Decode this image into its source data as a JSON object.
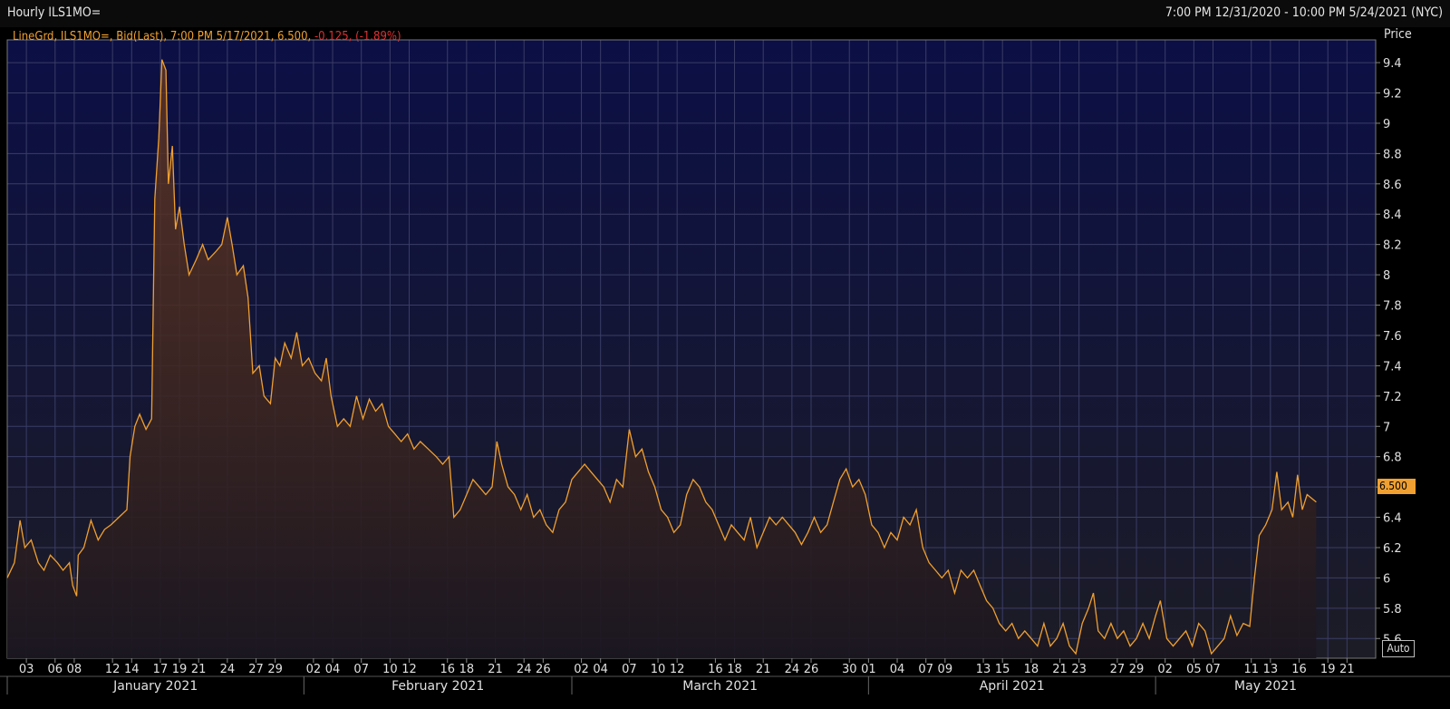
{
  "window": {
    "title": "Hourly ILS1MO=",
    "range": "7:00 PM 12/31/2020 - 10:00 PM 5/24/2021 (NYC)"
  },
  "legend": {
    "main": "LineGrd, ILS1MO=, Bid(Last), 7:00 PM 5/17/2021, 6.500,",
    "change": "-0.125, (-1.89%)"
  },
  "axis": {
    "price_label": "Price",
    "last_value_tag": "6.500",
    "auto_button": "Auto"
  },
  "colors": {
    "background": "#0a0d3a",
    "line": "#f0a030",
    "grid": "#3a3d66",
    "negative": "#e03030"
  },
  "chart_data": {
    "type": "area",
    "title": "Hourly ILS1MO=",
    "ylabel": "Price",
    "ylim": [
      5.47,
      9.55
    ],
    "y_ticks": [
      5.6,
      5.8,
      6,
      6.2,
      6.4,
      6.6,
      6.8,
      7,
      7.2,
      7.4,
      7.6,
      7.8,
      8,
      8.2,
      8.4,
      8.6,
      8.8,
      9,
      9.2,
      9.4
    ],
    "x_tick_labels": [
      "03",
      "06",
      "08",
      "12",
      "14",
      "17",
      "19",
      "21",
      "24",
      "27",
      "29",
      "02",
      "04",
      "07",
      "10",
      "12",
      "16",
      "18",
      "21",
      "24",
      "26",
      "02",
      "04",
      "07",
      "10",
      "12",
      "16",
      "18",
      "21",
      "24",
      "26",
      "30",
      "01",
      "04",
      "07",
      "09",
      "13",
      "15",
      "18",
      "21",
      "23",
      "27",
      "29",
      "02",
      "05",
      "07",
      "11",
      "13",
      "16",
      "19",
      "21"
    ],
    "x_tick_dates": [
      "2021-01-03",
      "2021-01-06",
      "2021-01-08",
      "2021-01-12",
      "2021-01-14",
      "2021-01-17",
      "2021-01-19",
      "2021-01-21",
      "2021-01-24",
      "2021-01-27",
      "2021-01-29",
      "2021-02-02",
      "2021-02-04",
      "2021-02-07",
      "2021-02-10",
      "2021-02-12",
      "2021-02-16",
      "2021-02-18",
      "2021-02-21",
      "2021-02-24",
      "2021-02-26",
      "2021-03-02",
      "2021-03-04",
      "2021-03-07",
      "2021-03-10",
      "2021-03-12",
      "2021-03-16",
      "2021-03-18",
      "2021-03-21",
      "2021-03-24",
      "2021-03-26",
      "2021-03-30",
      "2021-04-01",
      "2021-04-04",
      "2021-04-07",
      "2021-04-09",
      "2021-04-13",
      "2021-04-15",
      "2021-04-18",
      "2021-04-21",
      "2021-04-23",
      "2021-04-27",
      "2021-04-29",
      "2021-05-02",
      "2021-05-05",
      "2021-05-07",
      "2021-05-11",
      "2021-05-13",
      "2021-05-16",
      "2021-05-19",
      "2021-05-21"
    ],
    "months": [
      {
        "label": "January 2021",
        "start": "2021-01-01",
        "end": "2021-02-01"
      },
      {
        "label": "February 2021",
        "start": "2021-02-01",
        "end": "2021-03-01"
      },
      {
        "label": "March 2021",
        "start": "2021-03-01",
        "end": "2021-04-01"
      },
      {
        "label": "April 2021",
        "start": "2021-04-01",
        "end": "2021-05-01"
      },
      {
        "label": "May 2021",
        "start": "2021-05-01",
        "end": "2021-05-24"
      }
    ],
    "series": [
      {
        "name": "ILS1MO= Bid(Last)",
        "points": [
          [
            "2021-01-01 00:00",
            6.0
          ],
          [
            "2021-01-01 18:00",
            6.1
          ],
          [
            "2021-01-02 08:00",
            6.38
          ],
          [
            "2021-01-02 20:00",
            6.2
          ],
          [
            "2021-01-03 12:00",
            6.25
          ],
          [
            "2021-01-04 06:00",
            6.1
          ],
          [
            "2021-01-04 20:00",
            6.05
          ],
          [
            "2021-01-05 12:00",
            6.15
          ],
          [
            "2021-01-06 06:00",
            6.1
          ],
          [
            "2021-01-06 20:00",
            6.05
          ],
          [
            "2021-01-07 12:00",
            6.1
          ],
          [
            "2021-01-07 20:00",
            5.95
          ],
          [
            "2021-01-08 06:00",
            5.88
          ],
          [
            "2021-01-08 10:00",
            6.15
          ],
          [
            "2021-01-09 00:00",
            6.2
          ],
          [
            "2021-01-09 18:00",
            6.38
          ],
          [
            "2021-01-10 12:00",
            6.25
          ],
          [
            "2021-01-11 04:00",
            6.32
          ],
          [
            "2021-01-11 20:00",
            6.35
          ],
          [
            "2021-01-12 16:00",
            6.4
          ],
          [
            "2021-01-13 12:00",
            6.45
          ],
          [
            "2021-01-13 20:00",
            6.8
          ],
          [
            "2021-01-14 08:00",
            7.0
          ],
          [
            "2021-01-14 20:00",
            7.08
          ],
          [
            "2021-01-15 12:00",
            6.98
          ],
          [
            "2021-01-16 02:00",
            7.05
          ],
          [
            "2021-01-16 10:00",
            8.5
          ],
          [
            "2021-01-16 20:00",
            8.9
          ],
          [
            "2021-01-17 04:00",
            9.42
          ],
          [
            "2021-01-17 14:00",
            9.35
          ],
          [
            "2021-01-17 20:00",
            8.6
          ],
          [
            "2021-01-18 06:00",
            8.85
          ],
          [
            "2021-01-18 14:00",
            8.3
          ],
          [
            "2021-01-19 00:00",
            8.45
          ],
          [
            "2021-01-19 12:00",
            8.2
          ],
          [
            "2021-01-20 00:00",
            8.0
          ],
          [
            "2021-01-20 18:00",
            8.1
          ],
          [
            "2021-01-21 10:00",
            8.2
          ],
          [
            "2021-01-22 00:00",
            8.1
          ],
          [
            "2021-01-22 18:00",
            8.15
          ],
          [
            "2021-01-23 10:00",
            8.2
          ],
          [
            "2021-01-24 00:00",
            8.38
          ],
          [
            "2021-01-24 12:00",
            8.2
          ],
          [
            "2021-01-25 00:00",
            8.0
          ],
          [
            "2021-01-25 16:00",
            8.06
          ],
          [
            "2021-01-26 04:00",
            7.85
          ],
          [
            "2021-01-26 16:00",
            7.35
          ],
          [
            "2021-01-27 08:00",
            7.4
          ],
          [
            "2021-01-27 20:00",
            7.2
          ],
          [
            "2021-01-28 12:00",
            7.15
          ],
          [
            "2021-01-29 00:00",
            7.45
          ],
          [
            "2021-01-29 12:00",
            7.4
          ],
          [
            "2021-01-30 00:00",
            7.55
          ],
          [
            "2021-01-30 16:00",
            7.45
          ],
          [
            "2021-01-31 06:00",
            7.62
          ],
          [
            "2021-01-31 20:00",
            7.4
          ],
          [
            "2021-02-01 12:00",
            7.45
          ],
          [
            "2021-02-02 04:00",
            7.35
          ],
          [
            "2021-02-02 20:00",
            7.3
          ],
          [
            "2021-02-03 08:00",
            7.45
          ],
          [
            "2021-02-03 20:00",
            7.2
          ],
          [
            "2021-02-04 12:00",
            7.0
          ],
          [
            "2021-02-05 04:00",
            7.05
          ],
          [
            "2021-02-05 20:00",
            7.0
          ],
          [
            "2021-02-06 12:00",
            7.2
          ],
          [
            "2021-02-07 04:00",
            7.05
          ],
          [
            "2021-02-07 20:00",
            7.18
          ],
          [
            "2021-02-08 12:00",
            7.1
          ],
          [
            "2021-02-09 04:00",
            7.15
          ],
          [
            "2021-02-09 20:00",
            7.0
          ],
          [
            "2021-02-10 12:00",
            6.95
          ],
          [
            "2021-02-11 04:00",
            6.9
          ],
          [
            "2021-02-11 20:00",
            6.95
          ],
          [
            "2021-02-12 12:00",
            6.85
          ],
          [
            "2021-02-13 04:00",
            6.9
          ],
          [
            "2021-02-14 00:00",
            6.85
          ],
          [
            "2021-02-14 20:00",
            6.8
          ],
          [
            "2021-02-15 12:00",
            6.75
          ],
          [
            "2021-02-16 04:00",
            6.8
          ],
          [
            "2021-02-16 16:00",
            6.4
          ],
          [
            "2021-02-17 08:00",
            6.45
          ],
          [
            "2021-02-18 00:00",
            6.55
          ],
          [
            "2021-02-18 16:00",
            6.65
          ],
          [
            "2021-02-19 08:00",
            6.6
          ],
          [
            "2021-02-20 00:00",
            6.55
          ],
          [
            "2021-02-20 16:00",
            6.6
          ],
          [
            "2021-02-21 04:00",
            6.9
          ],
          [
            "2021-02-21 16:00",
            6.75
          ],
          [
            "2021-02-22 08:00",
            6.6
          ],
          [
            "2021-02-23 00:00",
            6.55
          ],
          [
            "2021-02-23 16:00",
            6.45
          ],
          [
            "2021-02-24 08:00",
            6.55
          ],
          [
            "2021-02-25 00:00",
            6.4
          ],
          [
            "2021-02-25 16:00",
            6.45
          ],
          [
            "2021-02-26 08:00",
            6.35
          ],
          [
            "2021-02-27 00:00",
            6.3
          ],
          [
            "2021-02-27 16:00",
            6.45
          ],
          [
            "2021-02-28 08:00",
            6.5
          ],
          [
            "2021-03-01 00:00",
            6.65
          ],
          [
            "2021-03-01 16:00",
            6.7
          ],
          [
            "2021-03-02 08:00",
            6.75
          ],
          [
            "2021-03-03 00:00",
            6.7
          ],
          [
            "2021-03-03 16:00",
            6.65
          ],
          [
            "2021-03-04 08:00",
            6.6
          ],
          [
            "2021-03-05 00:00",
            6.5
          ],
          [
            "2021-03-05 16:00",
            6.65
          ],
          [
            "2021-03-06 08:00",
            6.6
          ],
          [
            "2021-03-07 00:00",
            6.98
          ],
          [
            "2021-03-07 16:00",
            6.8
          ],
          [
            "2021-03-08 08:00",
            6.85
          ],
          [
            "2021-03-09 00:00",
            6.7
          ],
          [
            "2021-03-09 16:00",
            6.6
          ],
          [
            "2021-03-10 08:00",
            6.45
          ],
          [
            "2021-03-11 00:00",
            6.4
          ],
          [
            "2021-03-11 16:00",
            6.3
          ],
          [
            "2021-03-12 08:00",
            6.35
          ],
          [
            "2021-03-13 00:00",
            6.55
          ],
          [
            "2021-03-13 16:00",
            6.65
          ],
          [
            "2021-03-14 08:00",
            6.6
          ],
          [
            "2021-03-15 00:00",
            6.5
          ],
          [
            "2021-03-15 16:00",
            6.45
          ],
          [
            "2021-03-16 08:00",
            6.35
          ],
          [
            "2021-03-17 00:00",
            6.25
          ],
          [
            "2021-03-17 16:00",
            6.35
          ],
          [
            "2021-03-18 08:00",
            6.3
          ],
          [
            "2021-03-19 00:00",
            6.25
          ],
          [
            "2021-03-19 16:00",
            6.4
          ],
          [
            "2021-03-20 08:00",
            6.2
          ],
          [
            "2021-03-21 00:00",
            6.3
          ],
          [
            "2021-03-21 16:00",
            6.4
          ],
          [
            "2021-03-22 08:00",
            6.35
          ],
          [
            "2021-03-23 00:00",
            6.4
          ],
          [
            "2021-03-23 16:00",
            6.35
          ],
          [
            "2021-03-24 08:00",
            6.3
          ],
          [
            "2021-03-25 00:00",
            6.22
          ],
          [
            "2021-03-25 16:00",
            6.3
          ],
          [
            "2021-03-26 08:00",
            6.4
          ],
          [
            "2021-03-27 00:00",
            6.3
          ],
          [
            "2021-03-27 16:00",
            6.35
          ],
          [
            "2021-03-28 08:00",
            6.5
          ],
          [
            "2021-03-29 00:00",
            6.65
          ],
          [
            "2021-03-29 16:00",
            6.72
          ],
          [
            "2021-03-30 08:00",
            6.6
          ],
          [
            "2021-03-31 00:00",
            6.65
          ],
          [
            "2021-03-31 16:00",
            6.55
          ],
          [
            "2021-04-01 08:00",
            6.35
          ],
          [
            "2021-04-02 00:00",
            6.3
          ],
          [
            "2021-04-02 16:00",
            6.2
          ],
          [
            "2021-04-03 08:00",
            6.3
          ],
          [
            "2021-04-04 00:00",
            6.25
          ],
          [
            "2021-04-04 16:00",
            6.4
          ],
          [
            "2021-04-05 08:00",
            6.35
          ],
          [
            "2021-04-06 00:00",
            6.45
          ],
          [
            "2021-04-06 16:00",
            6.2
          ],
          [
            "2021-04-07 08:00",
            6.1
          ],
          [
            "2021-04-08 00:00",
            6.05
          ],
          [
            "2021-04-08 16:00",
            6.0
          ],
          [
            "2021-04-09 08:00",
            6.05
          ],
          [
            "2021-04-10 00:00",
            5.9
          ],
          [
            "2021-04-10 16:00",
            6.05
          ],
          [
            "2021-04-11 08:00",
            6.0
          ],
          [
            "2021-04-12 00:00",
            6.05
          ],
          [
            "2021-04-12 16:00",
            5.95
          ],
          [
            "2021-04-13 08:00",
            5.85
          ],
          [
            "2021-04-14 00:00",
            5.8
          ],
          [
            "2021-04-14 16:00",
            5.7
          ],
          [
            "2021-04-15 08:00",
            5.65
          ],
          [
            "2021-04-16 00:00",
            5.7
          ],
          [
            "2021-04-16 16:00",
            5.6
          ],
          [
            "2021-04-17 08:00",
            5.65
          ],
          [
            "2021-04-18 00:00",
            5.6
          ],
          [
            "2021-04-18 16:00",
            5.55
          ],
          [
            "2021-04-19 08:00",
            5.7
          ],
          [
            "2021-04-20 00:00",
            5.55
          ],
          [
            "2021-04-20 16:00",
            5.6
          ],
          [
            "2021-04-21 08:00",
            5.7
          ],
          [
            "2021-04-22 00:00",
            5.55
          ],
          [
            "2021-04-22 16:00",
            5.5
          ],
          [
            "2021-04-23 08:00",
            5.7
          ],
          [
            "2021-04-24 00:00",
            5.8
          ],
          [
            "2021-04-24 12:00",
            5.9
          ],
          [
            "2021-04-25 00:00",
            5.65
          ],
          [
            "2021-04-25 16:00",
            5.6
          ],
          [
            "2021-04-26 08:00",
            5.7
          ],
          [
            "2021-04-27 00:00",
            5.6
          ],
          [
            "2021-04-27 16:00",
            5.65
          ],
          [
            "2021-04-28 08:00",
            5.55
          ],
          [
            "2021-04-29 00:00",
            5.6
          ],
          [
            "2021-04-29 16:00",
            5.7
          ],
          [
            "2021-04-30 08:00",
            5.6
          ],
          [
            "2021-05-01 00:00",
            5.75
          ],
          [
            "2021-05-01 12:00",
            5.85
          ],
          [
            "2021-05-02 04:00",
            5.6
          ],
          [
            "2021-05-02 20:00",
            5.55
          ],
          [
            "2021-05-03 12:00",
            5.6
          ],
          [
            "2021-05-04 04:00",
            5.65
          ],
          [
            "2021-05-04 20:00",
            5.55
          ],
          [
            "2021-05-05 12:00",
            5.7
          ],
          [
            "2021-05-06 04:00",
            5.65
          ],
          [
            "2021-05-06 20:00",
            5.5
          ],
          [
            "2021-05-07 12:00",
            5.55
          ],
          [
            "2021-05-08 04:00",
            5.6
          ],
          [
            "2021-05-08 20:00",
            5.75
          ],
          [
            "2021-05-09 12:00",
            5.62
          ],
          [
            "2021-05-10 04:00",
            5.7
          ],
          [
            "2021-05-10 20:00",
            5.68
          ],
          [
            "2021-05-11 08:00",
            6.0
          ],
          [
            "2021-05-11 20:00",
            6.28
          ],
          [
            "2021-05-12 12:00",
            6.35
          ],
          [
            "2021-05-13 04:00",
            6.45
          ],
          [
            "2021-05-13 16:00",
            6.7
          ],
          [
            "2021-05-14 04:00",
            6.45
          ],
          [
            "2021-05-14 20:00",
            6.5
          ],
          [
            "2021-05-15 08:00",
            6.4
          ],
          [
            "2021-05-15 20:00",
            6.68
          ],
          [
            "2021-05-16 08:00",
            6.45
          ],
          [
            "2021-05-16 20:00",
            6.55
          ],
          [
            "2021-05-17 19:00",
            6.5
          ]
        ]
      }
    ]
  }
}
